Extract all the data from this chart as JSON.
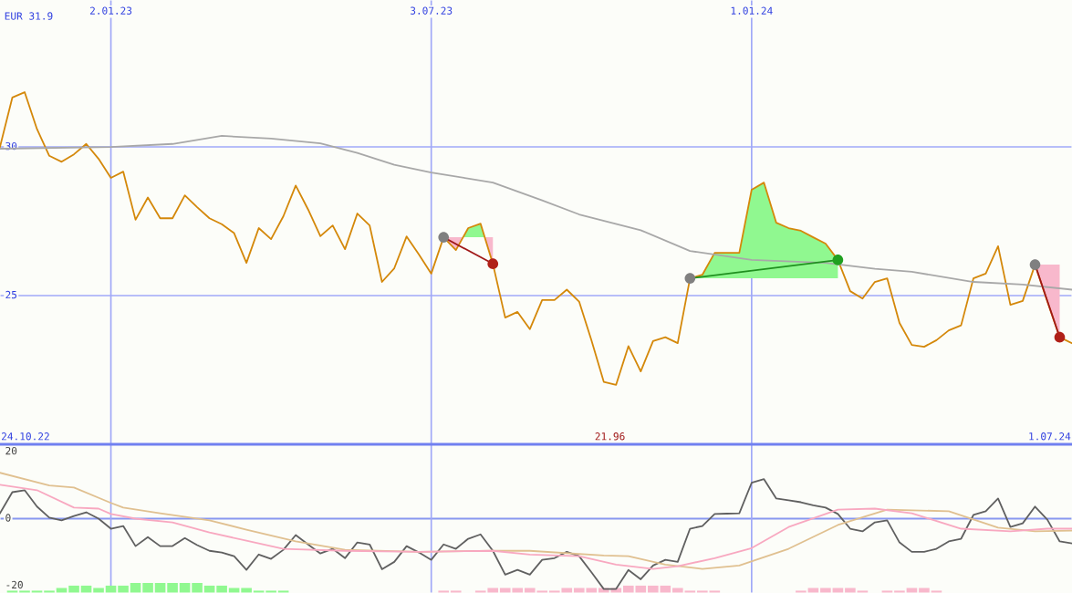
{
  "chart_data": [
    {
      "type": "line",
      "x": [
        "2022-10-31",
        "2022-11-07",
        "2022-11-14",
        "2022-11-21",
        "2022-11-28",
        "2022-12-05",
        "2022-12-12",
        "2022-12-19",
        "2022-12-26",
        "2023-01-02",
        "2023-01-09",
        "2023-01-16",
        "2023-01-23",
        "2023-01-30",
        "2023-02-06",
        "2023-02-13",
        "2023-02-20",
        "2023-02-27",
        "2023-03-06",
        "2023-03-13",
        "2023-03-20",
        "2023-03-27",
        "2023-04-03",
        "2023-04-10",
        "2023-04-17",
        "2023-04-24",
        "2023-05-01",
        "2023-05-08",
        "2023-05-15",
        "2023-05-22",
        "2023-05-29",
        "2023-06-05",
        "2023-06-12",
        "2023-06-19",
        "2023-06-26",
        "2023-07-03",
        "2023-07-10",
        "2023-07-17",
        "2023-07-24",
        "2023-07-31",
        "2023-08-07",
        "2023-08-14",
        "2023-08-21",
        "2023-08-28",
        "2023-09-04",
        "2023-09-11",
        "2023-09-18",
        "2023-09-25",
        "2023-10-02",
        "2023-10-09",
        "2023-10-16",
        "2023-10-23",
        "2023-10-30",
        "2023-11-06",
        "2023-11-13",
        "2023-11-20",
        "2023-11-27",
        "2023-12-04",
        "2023-12-11",
        "2023-12-18",
        "2023-12-25",
        "2024-01-01",
        "2024-01-08",
        "2024-01-15",
        "2024-01-22",
        "2024-01-29",
        "2024-02-05",
        "2024-02-12",
        "2024-02-19",
        "2024-02-26",
        "2024-03-04",
        "2024-03-11",
        "2024-03-18",
        "2024-03-25",
        "2024-04-01",
        "2024-04-08",
        "2024-04-15",
        "2024-04-22",
        "2024-04-29",
        "2024-05-06",
        "2024-05-13",
        "2024-05-20",
        "2024-05-27",
        "2024-06-03",
        "2024-06-10",
        "2024-06-17",
        "2024-06-24",
        "2024-07-01"
      ],
      "series": [
        {
          "color": "#a8a8a8",
          "x": [
            "2022-10-31",
            "2023-01-02",
            "2023-02-06",
            "2023-03-06",
            "2023-04-03",
            "2023-05-01",
            "2023-05-22",
            "2023-06-12",
            "2023-07-03",
            "2023-08-07",
            "2023-09-04",
            "2023-09-25",
            "2023-10-30",
            "2023-11-27",
            "2024-01-01",
            "2024-02-12",
            "2024-03-11",
            "2024-04-01",
            "2024-05-06",
            "2024-06-03",
            "2024-07-01"
          ],
          "values": [
            29.94,
            30.0,
            30.1,
            30.37,
            30.28,
            30.12,
            29.8,
            29.4,
            29.14,
            28.8,
            28.2,
            27.73,
            27.2,
            26.5,
            26.2,
            26.1,
            25.9,
            25.8,
            25.46,
            25.37,
            25.2
          ]
        },
        {
          "color": "#d4880a",
          "values": [
            30.0,
            31.66,
            31.84,
            30.6,
            29.7,
            29.5,
            29.75,
            30.1,
            29.6,
            28.96,
            29.17,
            27.55,
            28.3,
            27.6,
            27.6,
            28.37,
            27.97,
            27.6,
            27.4,
            27.1,
            26.1,
            27.27,
            26.9,
            27.67,
            28.7,
            27.9,
            27.0,
            27.36,
            26.56,
            27.76,
            27.36,
            25.46,
            25.92,
            26.99,
            26.38,
            25.74,
            26.96,
            26.53,
            27.27,
            27.42,
            26.07,
            24.26,
            24.45,
            23.87,
            24.85,
            24.85,
            25.2,
            24.8,
            23.5,
            22.1,
            22.0,
            23.3,
            22.45,
            23.47,
            23.6,
            23.4,
            25.58,
            25.7,
            26.44,
            26.44,
            26.44,
            28.56,
            28.8,
            27.45,
            27.27,
            27.18,
            26.96,
            26.75,
            26.2,
            25.15,
            24.9,
            25.46,
            25.58,
            24.08,
            23.34,
            23.28,
            23.5,
            23.83,
            24.0,
            25.58,
            25.74,
            26.66,
            24.69,
            24.82,
            26.04,
            24.8,
            23.6,
            23.4
          ]
        },
        {
          "color": "#a01818",
          "x": [
            "2023-07-10",
            "2023-08-07"
          ],
          "values": [
            26.96,
            26.07
          ]
        },
        {
          "color": "#209020",
          "x": [
            "2023-11-27",
            "2024-02-19"
          ],
          "values": [
            25.58,
            26.2
          ]
        },
        {
          "color": "#a01818",
          "x": [
            "2024-06-10",
            "2024-06-24"
          ],
          "values": [
            26.04,
            23.6
          ]
        },
        {
          "type": "scatter",
          "marker": "circle",
          "colors": [
            "#808080",
            "#b02018"
          ],
          "x": [
            "2023-07-10",
            "2023-08-07"
          ],
          "values": [
            26.96,
            26.07
          ]
        },
        {
          "type": "scatter",
          "marker": "circle",
          "colors": [
            "#808080",
            "#20a020"
          ],
          "x": [
            "2023-11-27",
            "2024-02-19"
          ],
          "values": [
            25.58,
            26.2
          ]
        },
        {
          "type": "scatter",
          "marker": "circle",
          "colors": [
            "#808080",
            "#b02018"
          ],
          "x": [
            "2024-06-10",
            "2024-06-24"
          ],
          "values": [
            26.04,
            23.6
          ]
        }
      ],
      "xlim": [
        "2022-10-31",
        "2024-07-01"
      ],
      "xticks": [
        {
          "value": "2023-01-02",
          "label": "2.01.23"
        },
        {
          "value": "2023-07-03",
          "label": "3.07.23"
        },
        {
          "value": "2024-01-01",
          "label": "1.01.24"
        }
      ],
      "ylim": [
        20.0,
        34.94
      ],
      "yticks": [
        25,
        30
      ],
      "grid": true,
      "marker": "none",
      "annotations": [
        "EUR 31.9",
        "24.10.22",
        "21.96",
        "1.07.24"
      ]
    },
    {
      "type": "line",
      "x": [
        "2022-10-31",
        "2022-11-07",
        "2022-11-14",
        "2022-11-21",
        "2022-11-28",
        "2022-12-05",
        "2022-12-12",
        "2022-12-19",
        "2022-12-26",
        "2023-01-02",
        "2023-01-09",
        "2023-01-16",
        "2023-01-23",
        "2023-01-30",
        "2023-02-06",
        "2023-02-13",
        "2023-02-20",
        "2023-02-27",
        "2023-03-06",
        "2023-03-13",
        "2023-03-20",
        "2023-03-27",
        "2023-04-03",
        "2023-04-10",
        "2023-04-17",
        "2023-04-24",
        "2023-05-01",
        "2023-05-08",
        "2023-05-15",
        "2023-05-22",
        "2023-05-29",
        "2023-06-05",
        "2023-06-12",
        "2023-06-19",
        "2023-06-26",
        "2023-07-03",
        "2023-07-10",
        "2023-07-17",
        "2023-07-24",
        "2023-07-31",
        "2023-08-07",
        "2023-08-14",
        "2023-08-21",
        "2023-08-28",
        "2023-09-04",
        "2023-09-11",
        "2023-09-18",
        "2023-09-25",
        "2023-10-02",
        "2023-10-09",
        "2023-10-16",
        "2023-10-23",
        "2023-10-30",
        "2023-11-06",
        "2023-11-13",
        "2023-11-20",
        "2023-11-27",
        "2023-12-04",
        "2023-12-11",
        "2023-12-18",
        "2023-12-25",
        "2024-01-01",
        "2024-01-08",
        "2024-01-15",
        "2024-01-22",
        "2024-01-29",
        "2024-02-05",
        "2024-02-12",
        "2024-02-19",
        "2024-02-26",
        "2024-03-04",
        "2024-03-11",
        "2024-03-18",
        "2024-03-25",
        "2024-04-01",
        "2024-04-08",
        "2024-04-15",
        "2024-04-22",
        "2024-04-29",
        "2024-05-06",
        "2024-05-13",
        "2024-05-20",
        "2024-05-27",
        "2024-06-03",
        "2024-06-10",
        "2024-06-17",
        "2024-06-24",
        "2024-07-01"
      ],
      "series": [
        {
          "type": "bar",
          "color": "#90f890",
          "values": [
            null,
            0.7,
            0.7,
            0.7,
            0.7,
            1.5,
            2.2,
            2.2,
            1.5,
            2.2,
            2.2,
            3.0,
            3.0,
            3.0,
            3.0,
            3.0,
            3.0,
            2.2,
            2.2,
            1.5,
            1.5,
            0.7,
            0.7,
            0.7,
            null,
            null,
            null,
            null,
            null,
            null,
            null,
            null,
            null,
            null,
            null,
            null,
            null,
            null,
            null,
            null,
            null,
            null,
            null,
            null,
            null,
            null,
            null,
            null,
            null,
            null,
            null,
            null,
            null,
            null,
            null,
            null,
            null,
            null,
            null,
            null,
            null,
            null,
            null,
            null,
            null,
            null,
            null,
            null,
            null,
            null,
            null,
            null,
            null,
            null,
            null,
            null,
            null,
            null,
            null,
            null,
            null,
            null,
            null,
            null,
            null,
            null,
            null,
            null
          ],
          "base": [
            null,
            -22.2,
            -22.2,
            -22.2,
            -22.2,
            -22.2,
            -22.2,
            -22.2,
            -22.2,
            -22.2,
            -22.2,
            -22.2,
            -22.2,
            -22.2,
            -22.2,
            -22.2,
            -22.2,
            -22.2,
            -22.2,
            -22.2,
            -22.2,
            -22.2,
            -22.2,
            -22.2,
            null,
            null,
            null,
            null,
            null,
            null,
            null,
            null,
            null,
            null,
            null,
            null,
            null,
            null,
            null,
            null,
            null,
            null,
            null,
            null,
            null,
            null,
            null,
            null,
            null,
            null,
            null,
            null,
            null,
            null,
            null,
            null,
            null,
            null,
            null,
            null,
            null,
            null,
            null,
            null,
            null,
            null,
            null,
            null,
            null,
            null,
            null,
            null,
            null,
            null,
            null,
            null,
            null,
            null,
            null,
            null,
            null,
            null,
            null,
            null,
            null,
            null,
            null,
            null
          ]
        },
        {
          "type": "bar",
          "color": "#f8b8cc",
          "values": [
            null,
            null,
            null,
            null,
            null,
            null,
            null,
            null,
            null,
            null,
            null,
            null,
            null,
            null,
            null,
            null,
            null,
            null,
            null,
            null,
            null,
            null,
            null,
            null,
            null,
            null,
            null,
            null,
            null,
            null,
            null,
            null,
            null,
            null,
            null,
            null,
            0.7,
            0.7,
            null,
            0.7,
            1.5,
            1.5,
            1.5,
            1.5,
            0.7,
            0.7,
            1.5,
            1.5,
            1.5,
            1.5,
            1.5,
            2.2,
            2.2,
            2.2,
            2.2,
            1.5,
            0.7,
            0.7,
            0.7,
            null,
            null,
            null,
            null,
            null,
            null,
            0.7,
            1.5,
            1.5,
            1.5,
            1.5,
            0.7,
            null,
            0.7,
            0.7,
            1.5,
            1.5,
            0.7,
            null,
            null,
            null,
            null,
            null,
            null,
            null,
            null,
            null,
            null,
            null
          ],
          "base": [
            null,
            null,
            null,
            null,
            null,
            null,
            null,
            null,
            null,
            null,
            null,
            null,
            null,
            null,
            null,
            null,
            null,
            null,
            null,
            null,
            null,
            null,
            null,
            null,
            null,
            null,
            null,
            null,
            null,
            null,
            null,
            null,
            null,
            null,
            null,
            null,
            -22.2,
            -22.2,
            null,
            -22.2,
            -22.2,
            -22.2,
            -22.2,
            -22.2,
            -22.2,
            -22.2,
            -22.2,
            -22.2,
            -22.2,
            -22.2,
            -22.2,
            -22.2,
            -22.2,
            -22.2,
            -22.2,
            -22.2,
            -22.2,
            -22.2,
            -22.2,
            null,
            null,
            null,
            null,
            null,
            null,
            -22.2,
            -22.2,
            -22.2,
            -22.2,
            -22.2,
            -22.2,
            null,
            -22.2,
            -22.2,
            -22.2,
            -22.2,
            -22.2,
            null,
            null,
            null,
            null,
            null,
            null,
            null,
            null,
            null,
            null,
            null
          ]
        },
        {
          "color": "#e0c090",
          "x": [
            "2022-10-31",
            "2022-11-28",
            "2022-12-12",
            "2023-01-02",
            "2023-01-09",
            "2023-01-30",
            "2023-02-27",
            "2023-03-20",
            "2023-04-17",
            "2023-05-15",
            "2023-06-26",
            "2023-08-07",
            "2023-08-28",
            "2023-10-09",
            "2023-10-23",
            "2023-11-13",
            "2023-12-04",
            "2023-12-25",
            "2024-01-22",
            "2024-02-19",
            "2024-03-18",
            "2024-04-22",
            "2024-05-20",
            "2024-06-10",
            "2024-07-01"
          ],
          "values": [
            13.7,
            9.9,
            9.3,
            4.7,
            3.3,
            1.6,
            -0.5,
            -3.3,
            -6.8,
            -9.3,
            -9.9,
            -9.6,
            -9.6,
            -11,
            -11.2,
            -13.7,
            -15,
            -14,
            -9,
            -1.9,
            2.7,
            2.2,
            -2.7,
            -3.8,
            -3.6
          ]
        },
        {
          "color": "#f8a8c0",
          "x": [
            "2022-10-31",
            "2022-11-21",
            "2022-12-12",
            "2022-12-26",
            "2023-01-02",
            "2023-01-16",
            "2023-02-06",
            "2023-02-27",
            "2023-03-20",
            "2023-04-10",
            "2023-05-15",
            "2023-06-26",
            "2023-08-07",
            "2023-08-28",
            "2023-09-25",
            "2023-10-16",
            "2023-11-06",
            "2023-11-20",
            "2023-12-11",
            "2024-01-01",
            "2024-01-22",
            "2024-02-19",
            "2024-03-11",
            "2024-04-01",
            "2024-04-29",
            "2024-05-27",
            "2024-06-17",
            "2024-07-01"
          ],
          "values": [
            10.1,
            8.5,
            3.3,
            3.0,
            1.4,
            0,
            -1.1,
            -4.1,
            -6.6,
            -9,
            -9.6,
            -9.9,
            -9.6,
            -10.7,
            -11.2,
            -13.7,
            -15,
            -14.2,
            -11.8,
            -8.8,
            -2.5,
            2.7,
            3.0,
            1.6,
            -3,
            -3.8,
            -3,
            -3
          ]
        },
        {
          "color": "#606060",
          "values": [
            1.6,
            7.9,
            8.5,
            3.6,
            0.3,
            -0.5,
            0.8,
            1.9,
            0,
            -3,
            -2.2,
            -8.2,
            -5.5,
            -8.2,
            -8.2,
            -5.8,
            -7.9,
            -9.6,
            -10.1,
            -11.2,
            -15.3,
            -10.7,
            -12,
            -9.3,
            -4.9,
            -7.7,
            -10.4,
            -9,
            -11.8,
            -7.1,
            -7.7,
            -15.1,
            -12.9,
            -8.2,
            -10.1,
            -12.3,
            -7.7,
            -9,
            -6,
            -4.7,
            -9.6,
            -16.7,
            -15.3,
            -16.7,
            -12.3,
            -11.8,
            -9.9,
            -11.2,
            -16,
            -21,
            -21,
            -15.3,
            -18.1,
            -14,
            -12.3,
            -12.9,
            -3,
            -2.2,
            1.4,
            1.5,
            1.6,
            10.7,
            11.8,
            6,
            5.5,
            4.9,
            4.0,
            3.3,
            1.4,
            -3,
            -3.8,
            -1.1,
            -0.5,
            -7.1,
            -9.9,
            -9.9,
            -9,
            -6.8,
            -6,
            1.1,
            2.2,
            6,
            -2.5,
            -1.4,
            3.6,
            -0.3,
            -6.8,
            -7.4
          ]
        }
      ],
      "xlim": [
        "2022-10-31",
        "2024-07-01"
      ],
      "xticks": [
        {
          "value": "2023-01-02",
          "label": null
        },
        {
          "value": "2023-07-03",
          "label": null
        },
        {
          "value": "2024-01-01",
          "label": null
        }
      ],
      "ylim": [
        -22.2,
        22.2
      ],
      "yticks": [
        20,
        0,
        -20
      ],
      "grid": "x",
      "ref_lines": [
        {
          "axis": "y",
          "value": 0,
          "color": "#8898f0"
        }
      ],
      "tick_labels": "y",
      "marker": "none"
    }
  ]
}
